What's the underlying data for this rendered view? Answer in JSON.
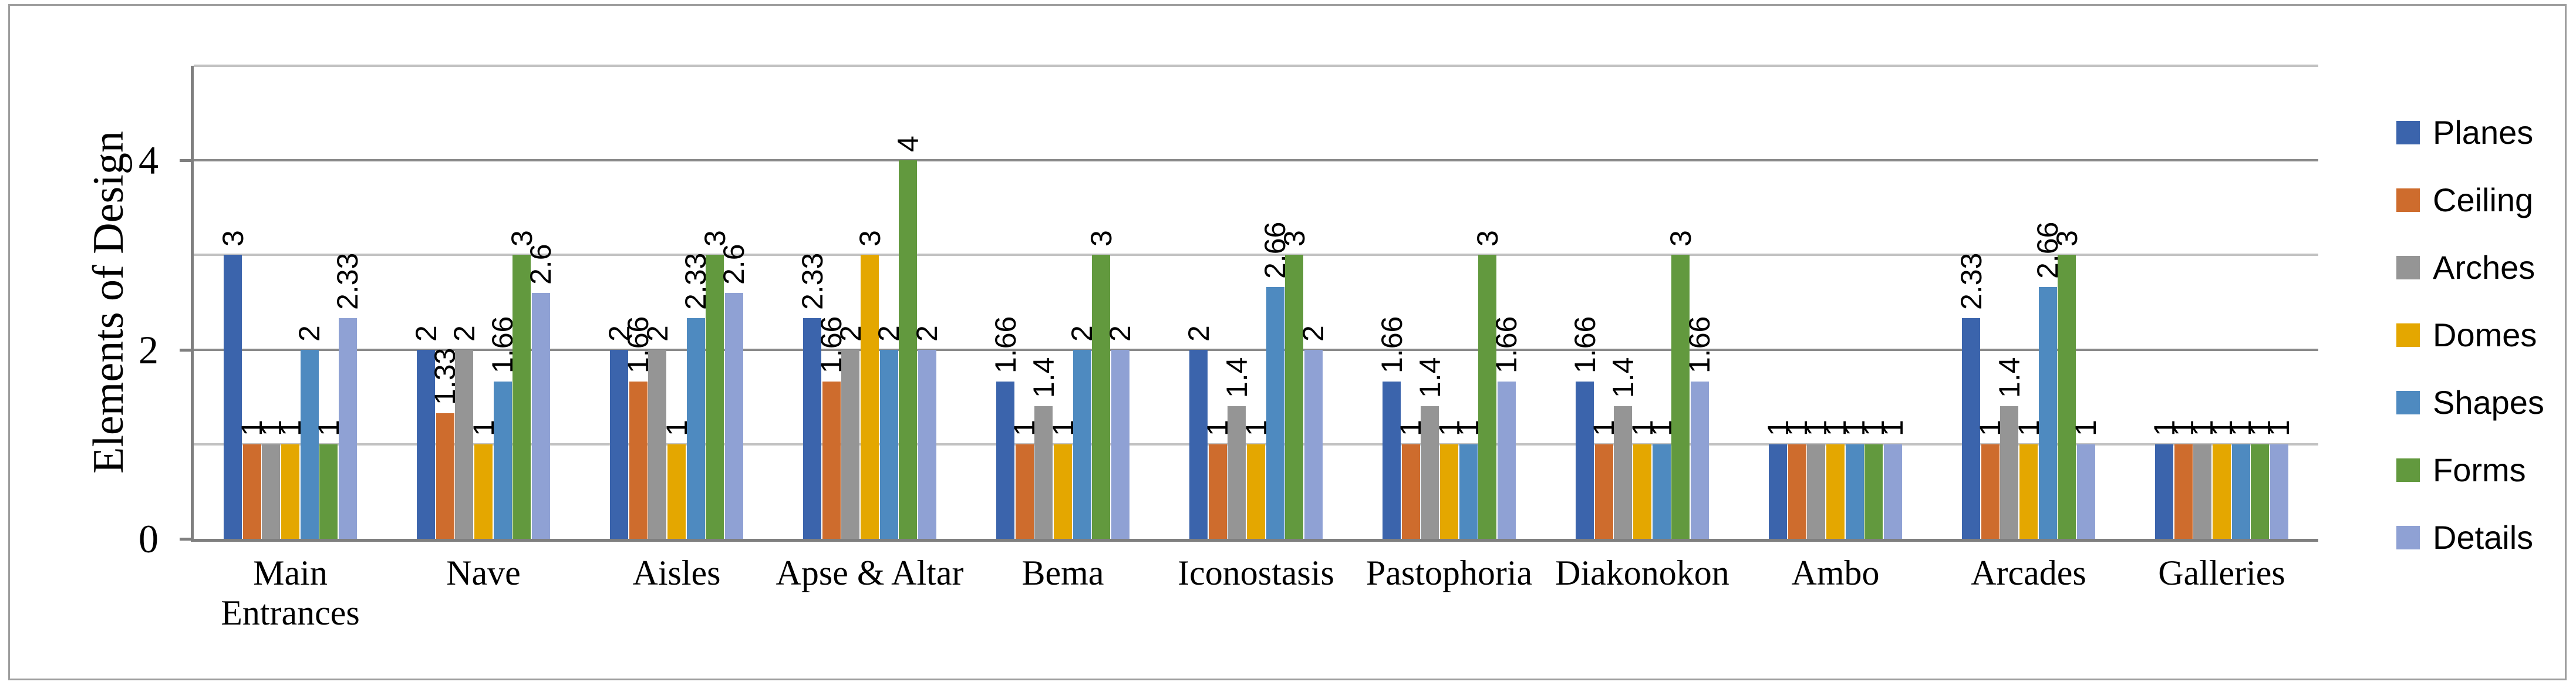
{
  "figure": {
    "background": "#ffffff",
    "border_color": "#9e9e9e"
  },
  "chart_data": {
    "type": "bar",
    "title": "",
    "ylabel": "Elements of Design",
    "xlabel": "",
    "categories": [
      "Main Entrances",
      "Nave",
      "Aisles",
      "Apse & Altar",
      "Bema",
      "Iconostasis",
      "Pastophoria",
      "Diakonokon",
      "Ambo",
      "Arcades",
      "Galleries"
    ],
    "series": [
      {
        "name": "Planes",
        "color": "#3b64ac",
        "values": [
          3,
          2,
          2,
          2.33,
          1.66,
          2,
          1.66,
          1.66,
          1,
          2.33,
          1
        ],
        "labels": [
          "3",
          "2",
          "2",
          "2.33",
          "1.66",
          "2",
          "1.66",
          "1.66",
          "1",
          "2.33",
          "1"
        ]
      },
      {
        "name": "Ceiling",
        "color": "#ce6c2d",
        "values": [
          1,
          1.33,
          1.66,
          1.66,
          1,
          1,
          1,
          1,
          1,
          1,
          1
        ],
        "labels": [
          "1",
          "1.33",
          "1.66",
          "1.66",
          "1",
          "1",
          "1",
          "1",
          "1",
          "1",
          "1"
        ]
      },
      {
        "name": "Arches",
        "color": "#959595",
        "values": [
          1,
          2,
          2,
          2,
          1.4,
          1.4,
          1.4,
          1.4,
          1,
          1.4,
          1
        ],
        "labels": [
          "1",
          "2",
          "2",
          "2",
          "1.4",
          "1.4",
          "1.4",
          "1.4",
          "1",
          "1.4",
          "1"
        ]
      },
      {
        "name": "Domes",
        "color": "#e4a700",
        "values": [
          1,
          1,
          1,
          3,
          1,
          1,
          1,
          1,
          1,
          1,
          1
        ],
        "labels": [
          "1",
          "1",
          "1",
          "3",
          "1",
          "1",
          "1",
          "1",
          "1",
          "1",
          "1"
        ]
      },
      {
        "name": "Shapes",
        "color": "#4e8ac0",
        "values": [
          2,
          1.66,
          2.33,
          2,
          2,
          2.66,
          1,
          1,
          1,
          2.66,
          1
        ],
        "labels": [
          "2",
          "1.66",
          "2.33",
          "2",
          "2",
          "2.66",
          "1",
          "1",
          "1",
          "2.66",
          "1"
        ]
      },
      {
        "name": "Forms",
        "color": "#62993e",
        "values": [
          1,
          3,
          3,
          4,
          3,
          3,
          3,
          3,
          1,
          3,
          1
        ],
        "labels": [
          "1",
          "3",
          "3",
          "4",
          "3",
          "3",
          "3",
          "3",
          "1",
          "3",
          "1"
        ]
      },
      {
        "name": "Details",
        "color": "#8fa1d4",
        "values": [
          2.33,
          2.6,
          2.6,
          2,
          2,
          2,
          1.66,
          1.66,
          1,
          1,
          1
        ],
        "labels": [
          "2.33",
          "2.6",
          "2.6",
          "2",
          "2",
          "2",
          "1.66",
          "1.66",
          "1",
          "1",
          "1"
        ]
      }
    ],
    "ylim": [
      0,
      5
    ],
    "yticks": [
      {
        "value": 0,
        "label": "0"
      },
      {
        "value": 2,
        "label": "2"
      },
      {
        "value": 4,
        "label": "4"
      }
    ],
    "gridlines": {
      "minor_at": [
        1,
        3,
        5
      ],
      "major_at": [
        2,
        4
      ],
      "vertical": false
    },
    "legend": {
      "position": "right",
      "entries": [
        "Planes",
        "Ceiling",
        "Arches",
        "Domes",
        "Shapes",
        "Forms",
        "Details"
      ]
    }
  }
}
